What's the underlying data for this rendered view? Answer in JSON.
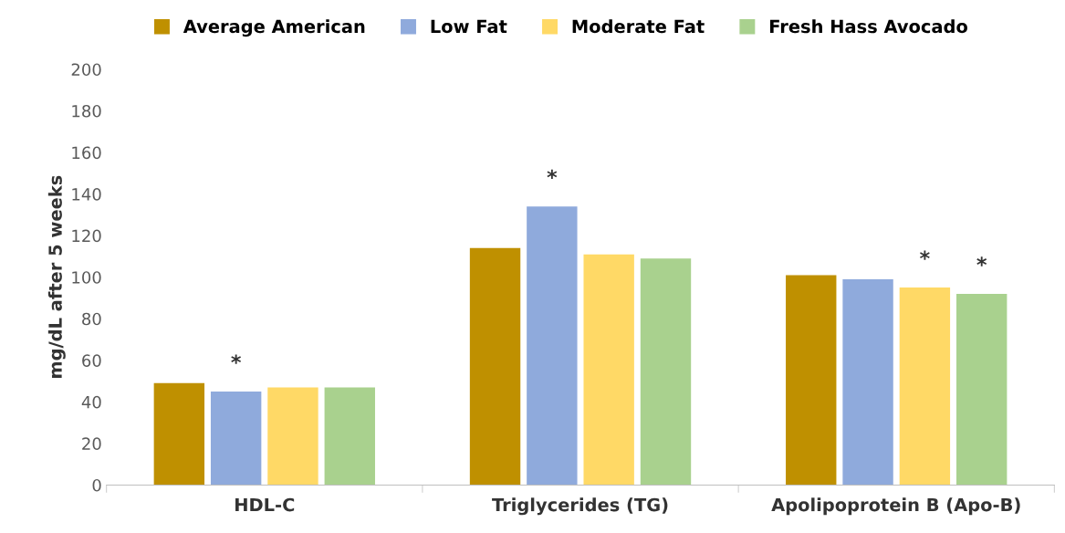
{
  "chart_data": {
    "type": "bar",
    "ylabel": "mg/dL after 5 weeks",
    "categories": [
      "HDL-C",
      "Triglycerides (TG)",
      "Apolipoprotein B (Apo-B)"
    ],
    "series": [
      {
        "name": "Average American",
        "color": "#bf9000",
        "values": [
          49,
          114,
          101
        ]
      },
      {
        "name": "Low Fat",
        "color": "#8faadc",
        "values": [
          45,
          134,
          99
        ],
        "value_labels": [
          "*",
          "*",
          null
        ]
      },
      {
        "name": "Moderate Fat",
        "color": "#ffd966",
        "values": [
          47,
          111,
          95
        ],
        "value_labels": [
          null,
          null,
          "*"
        ]
      },
      {
        "name": "Fresh Hass Avocado",
        "color": "#a9d18e",
        "values": [
          47,
          109,
          92
        ],
        "value_labels": [
          null,
          null,
          "*"
        ]
      }
    ],
    "ylim": [
      0,
      200
    ],
    "yticks": [
      0,
      20,
      40,
      60,
      80,
      100,
      120,
      140,
      160,
      180,
      200
    ],
    "grid": false,
    "legend": "top"
  }
}
